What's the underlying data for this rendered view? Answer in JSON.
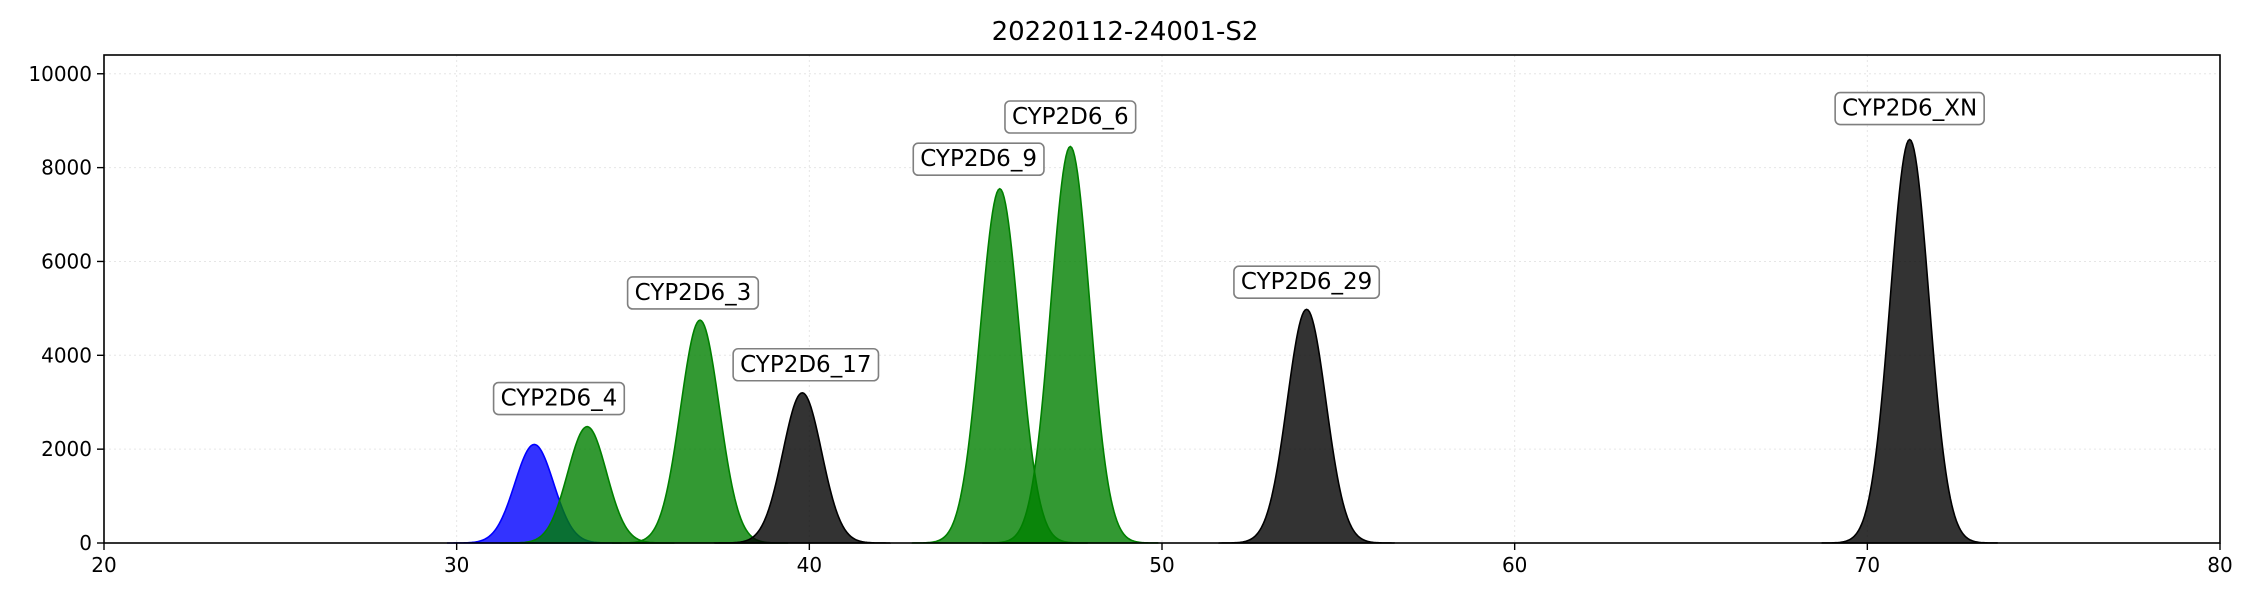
{
  "chart_data": {
    "type": "area",
    "title": "20220112-24001-S2",
    "xlabel": "",
    "ylabel": "",
    "xlim": [
      20,
      80
    ],
    "ylim": [
      0,
      10400
    ],
    "xticks": [
      20,
      30,
      40,
      50,
      60,
      70,
      80
    ],
    "yticks": [
      0,
      2000,
      4000,
      6000,
      8000,
      10000
    ],
    "grid": true,
    "colors": {
      "blue": "#0000ff",
      "green": "#008000",
      "black": "#000000"
    },
    "peaks": [
      {
        "center": 32.2,
        "height": 2100,
        "sigma": 0.55,
        "color": "#0000ff",
        "label": ""
      },
      {
        "center": 33.7,
        "height": 2480,
        "sigma": 0.55,
        "color": "#008000",
        "label": "CYP2D6_4",
        "label_x": 32.9,
        "label_y": 3100
      },
      {
        "center": 36.9,
        "height": 4750,
        "sigma": 0.55,
        "color": "#008000",
        "label": "CYP2D6_3",
        "label_x": 36.7,
        "label_y": 5350
      },
      {
        "center": 39.8,
        "height": 3200,
        "sigma": 0.55,
        "color": "#000000",
        "label": "CYP2D6_17",
        "label_x": 39.9,
        "label_y": 3820
      },
      {
        "center": 45.4,
        "height": 7550,
        "sigma": 0.55,
        "color": "#008000",
        "label": "CYP2D6_9",
        "label_x": 44.8,
        "label_y": 8200
      },
      {
        "center": 47.4,
        "height": 8450,
        "sigma": 0.55,
        "color": "#008000",
        "label": "CYP2D6_6",
        "label_x": 47.4,
        "label_y": 9100
      },
      {
        "center": 54.1,
        "height": 4980,
        "sigma": 0.55,
        "color": "#000000",
        "label": "CYP2D6_29",
        "label_x": 54.1,
        "label_y": 5580
      },
      {
        "center": 71.2,
        "height": 8600,
        "sigma": 0.55,
        "color": "#000000",
        "label": "CYP2D6_XN",
        "label_x": 71.2,
        "label_y": 9280
      }
    ]
  }
}
